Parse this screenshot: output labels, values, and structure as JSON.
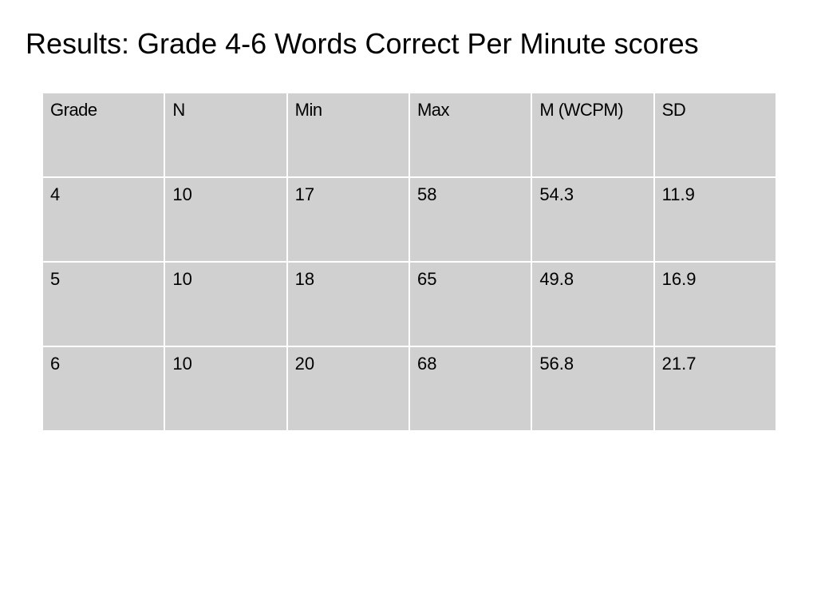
{
  "slide": {
    "title": "Results: Grade 4-6 Words Correct Per Minute scores"
  },
  "table": {
    "headers": [
      "Grade",
      "N",
      "Min",
      "Max",
      "M (WCPM)",
      "SD"
    ],
    "rows": [
      [
        "4",
        "10",
        "17",
        "58",
        "54.3",
        "11.9"
      ],
      [
        "5",
        "10",
        "18",
        "65",
        "49.8",
        "16.9"
      ],
      [
        "6",
        "10",
        "20",
        "68",
        "56.8",
        "21.7"
      ]
    ]
  },
  "colors": {
    "cell_fill": "#d0d0d0",
    "background": "#ffffff",
    "text": "#000000"
  }
}
